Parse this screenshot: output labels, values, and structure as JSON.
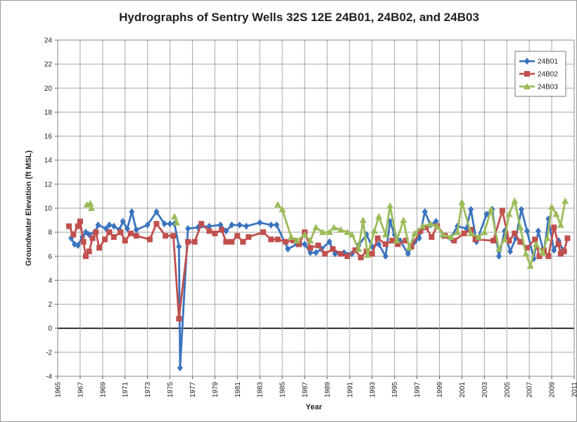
{
  "chart_data": {
    "type": "line",
    "title": "Hydrographs of Sentry Wells 32S 12E 24B01, 24B02, and 24B03",
    "x_label": "Year",
    "y_label": "Groundwater Elevation (ft MSL)",
    "xlim": [
      1965,
      2011
    ],
    "xticks": [
      1965,
      1967,
      1969,
      1971,
      1973,
      1975,
      1977,
      1979,
      1981,
      1983,
      1985,
      1987,
      1989,
      1991,
      1993,
      1995,
      1997,
      1999,
      2001,
      2003,
      2005,
      2007,
      2009,
      2011
    ],
    "ylim": [
      -4,
      24
    ],
    "yticks": [
      -4,
      -2,
      0,
      2,
      4,
      6,
      8,
      10,
      12,
      14,
      16,
      18,
      20,
      22,
      24
    ],
    "grid": true,
    "legend": "top-right",
    "series": [
      {
        "name": "24B01",
        "color": "#3a73be",
        "marker": "diamond",
        "x": [
          1966.2,
          1966.5,
          1966.8,
          1967.2,
          1967.5,
          1967.8,
          1968.3,
          1968.6,
          1969.3,
          1969.6,
          1970.0,
          1970.5,
          1970.8,
          1971.2,
          1971.6,
          1972.0,
          1973.0,
          1973.8,
          1974.5,
          1975.0,
          1975.4,
          1975.8,
          1975.9,
          1976.6,
          1977.5,
          1978.5,
          1979.5,
          1980.0,
          1980.5,
          1981.2,
          1981.8,
          1983.0,
          1984.0,
          1984.5,
          1985.5,
          1986.3,
          1987.0,
          1987.5,
          1988.0,
          1988.5,
          1989.2,
          1989.7,
          1990.5,
          1991.2,
          1991.8,
          1992.5,
          1993.0,
          1993.6,
          1994.2,
          1994.6,
          1995.0,
          1995.5,
          1996.2,
          1996.8,
          1997.2,
          1997.7,
          1998.2,
          1998.7,
          1999.3,
          2000.0,
          2000.6,
          2001.4,
          2001.8,
          2002.3,
          2003.2,
          2003.7,
          2004.3,
          2004.8,
          2005.3,
          2005.8,
          2006.3,
          2006.8,
          2007.4,
          2007.8,
          2008.3,
          2008.7,
          2009.2,
          2009.6,
          2010.0
        ],
        "values": [
          7.5,
          7.0,
          6.9,
          7.6,
          8.0,
          7.8,
          8.0,
          8.6,
          8.3,
          8.6,
          8.5,
          8.2,
          8.9,
          8.3,
          9.7,
          8.2,
          8.6,
          9.7,
          8.7,
          8.7,
          8.7,
          6.8,
          -3.3,
          8.3,
          8.4,
          8.5,
          8.6,
          8.1,
          8.6,
          8.6,
          8.5,
          8.8,
          8.6,
          8.6,
          6.6,
          7.0,
          7.0,
          6.3,
          6.3,
          6.6,
          7.2,
          6.2,
          6.3,
          6.2,
          6.9,
          7.8,
          6.8,
          7.0,
          6.0,
          8.9,
          7.8,
          7.3,
          6.2,
          7.2,
          7.5,
          9.7,
          8.6,
          8.9,
          7.7,
          7.5,
          8.5,
          8.3,
          9.9,
          7.2,
          9.5,
          9.9,
          6.0,
          8.1,
          6.4,
          7.5,
          9.9,
          8.1,
          5.8,
          8.1,
          6.3,
          9.1,
          6.5,
          7.3,
          6.5
        ]
      },
      {
        "name": "24B02",
        "color": "#c0504d",
        "marker": "square",
        "x": [
          1966.0,
          1966.4,
          1966.8,
          1967.0,
          1967.3,
          1967.5,
          1967.8,
          1968.1,
          1968.4,
          1968.7,
          1969.2,
          1969.6,
          1970.0,
          1970.6,
          1971.0,
          1971.5,
          1972.0,
          1973.2,
          1973.8,
          1974.6,
          1975.3,
          1975.8,
          1976.6,
          1977.2,
          1977.8,
          1978.5,
          1979.0,
          1979.6,
          1980.0,
          1980.5,
          1981.0,
          1981.5,
          1982.0,
          1983.3,
          1984.0,
          1984.6,
          1985.3,
          1986.0,
          1986.5,
          1987.0,
          1987.5,
          1988.2,
          1988.8,
          1989.5,
          1990.2,
          1990.8,
          1991.5,
          1992.0,
          1992.5,
          1993.0,
          1993.5,
          1994.2,
          1994.8,
          1995.3,
          1996.0,
          1996.5,
          1997.3,
          1997.8,
          1998.3,
          1998.8,
          1999.5,
          2000.3,
          2001.2,
          2001.8,
          2002.2,
          2003.8,
          2004.6,
          2005.2,
          2005.7,
          2006.2,
          2006.8,
          2007.5,
          2007.9,
          2008.3,
          2008.7,
          2009.2,
          2009.6,
          2009.8,
          2010.1,
          2010.4
        ],
        "values": [
          8.5,
          7.8,
          8.5,
          8.9,
          7.2,
          6.0,
          6.4,
          7.5,
          8.0,
          6.7,
          7.4,
          8.0,
          7.6,
          8.0,
          7.3,
          7.9,
          7.7,
          7.4,
          8.7,
          7.7,
          7.7,
          0.8,
          7.2,
          7.2,
          8.7,
          8.1,
          7.9,
          8.2,
          7.2,
          7.2,
          7.7,
          7.2,
          7.6,
          8.0,
          7.4,
          7.4,
          7.2,
          7.3,
          7.0,
          8.0,
          6.7,
          6.9,
          6.2,
          6.6,
          6.2,
          6.0,
          6.5,
          5.9,
          6.4,
          6.2,
          7.5,
          7.0,
          7.3,
          7.0,
          7.3,
          6.8,
          8.1,
          8.4,
          7.6,
          8.5,
          7.7,
          7.3,
          7.9,
          8.2,
          7.4,
          7.3,
          9.8,
          7.3,
          7.9,
          7.2,
          6.7,
          7.4,
          6.0,
          6.5,
          6.0,
          8.4,
          7.0,
          6.2,
          6.4,
          7.5
        ]
      },
      {
        "name": "24B03",
        "color": "#9bbb59",
        "marker": "triangle",
        "x": [
          1967.6,
          1967.9,
          1968.0,
          1971.0,
          1975.4,
          1975.6,
          1980.0,
          1984.6,
          1985.0,
          1985.8,
          1986.3,
          1987.0,
          1987.5,
          1988.0,
          1988.6,
          1989.2,
          1989.6,
          1990.2,
          1990.8,
          1991.2,
          1991.8,
          1992.2,
          1992.6,
          1993.2,
          1993.6,
          1994.2,
          1994.6,
          1995.2,
          1995.8,
          1996.3,
          1996.8,
          1997.5,
          1998.2,
          1998.8,
          1999.3,
          2000.0,
          2000.6,
          2001.0,
          2001.8,
          2002.5,
          2003.0,
          2003.6,
          2004.3,
          2004.8,
          2005.2,
          2005.7,
          2006.2,
          2006.7,
          2007.1,
          2007.6,
          2008.2,
          2008.6,
          2009.0,
          2009.4,
          2009.8,
          2010.2
        ],
        "values": [
          10.3,
          10.4,
          10.0,
          null,
          9.3,
          8.8,
          null,
          10.3,
          9.9,
          7.6,
          7.3,
          7.8,
          7.3,
          8.4,
          8.0,
          8.0,
          8.4,
          8.2,
          8.0,
          7.8,
          6.6,
          9.0,
          6.1,
          8.1,
          9.3,
          7.8,
          10.2,
          7.3,
          9.0,
          6.7,
          7.9,
          8.5,
          8.7,
          8.5,
          7.8,
          7.6,
          8.0,
          10.5,
          7.9,
          7.6,
          8.0,
          9.9,
          6.6,
          7.4,
          9.5,
          10.6,
          8.4,
          6.2,
          5.2,
          7.0,
          6.3,
          7.5,
          10.1,
          9.5,
          8.6,
          10.6
        ]
      }
    ]
  }
}
